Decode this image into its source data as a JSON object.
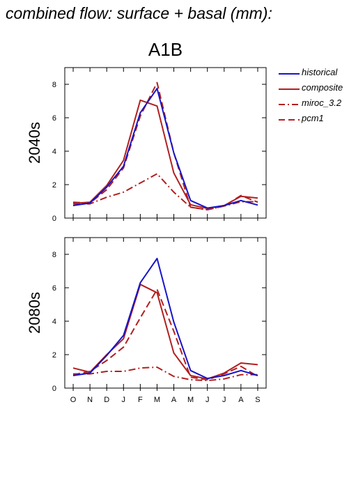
{
  "figure": {
    "title": "combined flow: surface + basal (mm):",
    "scenario": "A1B"
  },
  "legend": [
    {
      "label": "historical",
      "color": "#1515c8",
      "style": "solid"
    },
    {
      "label": "composite",
      "color": "#b21f1f",
      "style": "solid"
    },
    {
      "label": "miroc_3.2",
      "color": "#b21f1f",
      "style": "dashdot"
    },
    {
      "label": "pcm1",
      "color": "#b21f1f",
      "style": "dashed"
    }
  ],
  "chart_data": [
    {
      "type": "line",
      "title": "",
      "ylabel": "2040s",
      "categories": [
        "O",
        "N",
        "D",
        "J",
        "F",
        "M",
        "A",
        "M",
        "J",
        "J",
        "A",
        "S"
      ],
      "ylim": [
        0,
        9
      ],
      "yticks": [
        0,
        2,
        4,
        6,
        8
      ],
      "grid": false,
      "series": [
        {
          "name": "historical",
          "color": "#1515c8",
          "style": "solid",
          "values": [
            0.75,
            0.9,
            1.85,
            3.1,
            6.3,
            7.75,
            3.9,
            1.05,
            0.6,
            0.75,
            1.05,
            0.78
          ]
        },
        {
          "name": "composite",
          "color": "#b21f1f",
          "style": "solid",
          "values": [
            0.88,
            0.95,
            1.95,
            3.45,
            7.05,
            6.7,
            2.7,
            0.8,
            0.58,
            0.75,
            1.3,
            1.2
          ]
        },
        {
          "name": "miroc_3.2",
          "color": "#b21f1f",
          "style": "dashdot",
          "values": [
            0.85,
            0.85,
            1.25,
            1.55,
            2.1,
            2.65,
            1.55,
            0.65,
            0.5,
            0.72,
            0.98,
            0.98
          ]
        },
        {
          "name": "pcm1",
          "color": "#b21f1f",
          "style": "dashed",
          "values": [
            0.95,
            0.9,
            1.7,
            3.0,
            6.1,
            8.1,
            3.9,
            0.65,
            0.5,
            0.72,
            1.35,
            0.95
          ]
        }
      ]
    },
    {
      "type": "line",
      "title": "",
      "ylabel": "2080s",
      "categories": [
        "O",
        "N",
        "D",
        "J",
        "F",
        "M",
        "A",
        "M",
        "J",
        "J",
        "A",
        "S"
      ],
      "ylim": [
        0,
        9
      ],
      "yticks": [
        0,
        2,
        4,
        6,
        8
      ],
      "grid": false,
      "series": [
        {
          "name": "historical",
          "color": "#1515c8",
          "style": "solid",
          "values": [
            0.75,
            0.9,
            1.95,
            3.15,
            6.3,
            7.75,
            3.95,
            1.05,
            0.58,
            0.75,
            1.05,
            0.75
          ]
        },
        {
          "name": "composite",
          "color": "#b21f1f",
          "style": "solid",
          "values": [
            1.2,
            0.95,
            2.0,
            2.95,
            6.2,
            5.7,
            2.1,
            0.75,
            0.55,
            0.9,
            1.5,
            1.4
          ]
        },
        {
          "name": "miroc_3.2",
          "color": "#b21f1f",
          "style": "dashdot",
          "values": [
            0.85,
            0.85,
            1.0,
            1.0,
            1.2,
            1.25,
            0.7,
            0.5,
            0.45,
            0.55,
            0.8,
            0.8
          ]
        },
        {
          "name": "pcm1",
          "color": "#b21f1f",
          "style": "dashed",
          "values": [
            0.8,
            1.0,
            1.65,
            2.45,
            4.2,
            5.9,
            3.4,
            0.65,
            0.5,
            0.85,
            1.3,
            0.7
          ]
        }
      ]
    }
  ]
}
